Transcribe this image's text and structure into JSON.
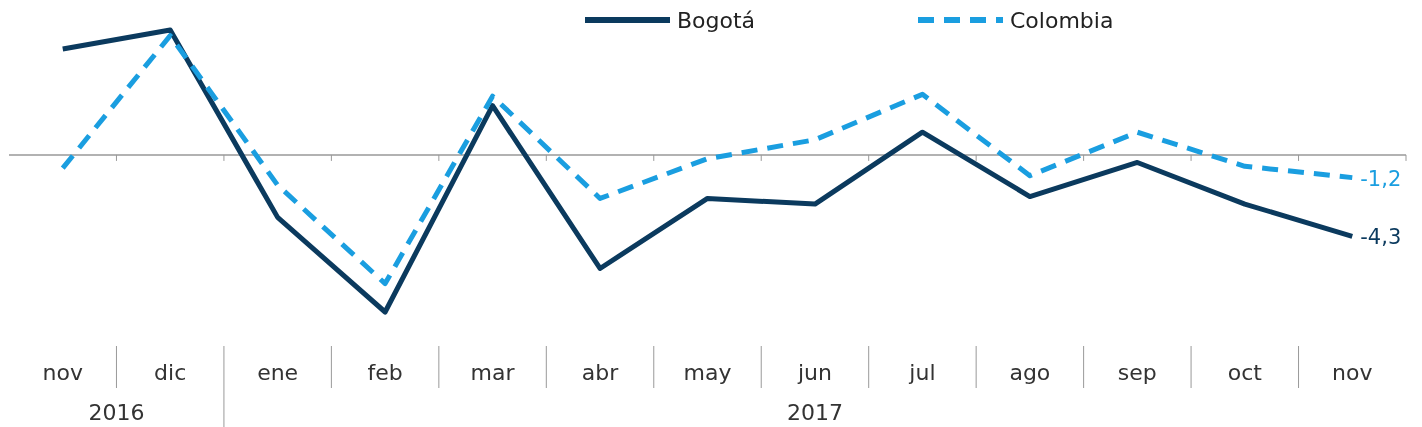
{
  "chart_data": {
    "type": "line",
    "categories": [
      "nov",
      "dic",
      "ene",
      "feb",
      "mar",
      "abr",
      "may",
      "jun",
      "jul",
      "ago",
      "sep",
      "oct",
      "nov"
    ],
    "legend": "top",
    "grid": false,
    "annotations": [
      "2016",
      "2017"
    ],
    "series": [
      {
        "name": "Bogotá",
        "color": "#0b3a5e",
        "line_style": "solid",
        "values": [
          5.6,
          6.6,
          -3.3,
          -8.3,
          2.6,
          -6.0,
          -2.3,
          -2.6,
          1.2,
          -2.2,
          -0.4,
          -2.6,
          -4.3
        ],
        "value_labels": [
          null,
          null,
          null,
          null,
          null,
          null,
          null,
          null,
          null,
          null,
          null,
          null,
          "-4,3"
        ]
      },
      {
        "name": "Colombia",
        "color": "#1a9ee0",
        "line_style": "dashed",
        "values": [
          -0.7,
          6.3,
          -1.6,
          -6.8,
          3.1,
          -2.3,
          -0.2,
          0.8,
          3.2,
          -1.1,
          1.2,
          -0.6,
          -1.2
        ],
        "value_labels": [
          null,
          null,
          null,
          null,
          null,
          null,
          null,
          null,
          null,
          null,
          null,
          null,
          "-1,2"
        ]
      }
    ]
  }
}
